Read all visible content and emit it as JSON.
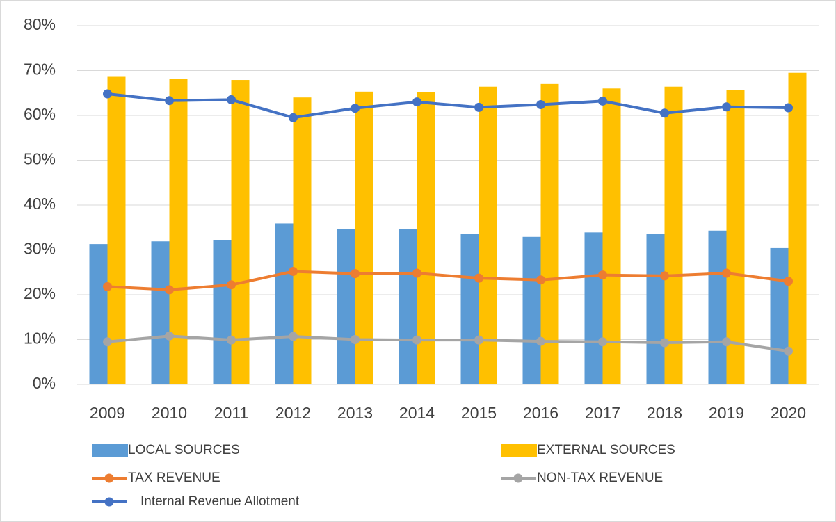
{
  "chart_data": {
    "type": "bar",
    "categories": [
      "2009",
      "2010",
      "2011",
      "2012",
      "2013",
      "2014",
      "2015",
      "2016",
      "2017",
      "2018",
      "2019",
      "2020"
    ],
    "series": [
      {
        "name": "LOCAL SOURCES",
        "type": "bar",
        "color": "#5b9bd5",
        "values": [
          31.3,
          31.9,
          32.1,
          35.9,
          34.6,
          34.7,
          33.5,
          32.9,
          33.9,
          33.5,
          34.3,
          30.4
        ]
      },
      {
        "name": "EXTERNAL SOURCES",
        "type": "bar",
        "color": "#ffc000",
        "values": [
          68.6,
          68.1,
          67.9,
          64.0,
          65.3,
          65.2,
          66.4,
          67.0,
          66.0,
          66.4,
          65.6,
          69.5
        ]
      },
      {
        "name": "TAX REVENUE",
        "type": "line",
        "color": "#ed7d31",
        "values": [
          21.8,
          21.1,
          22.2,
          25.2,
          24.7,
          24.8,
          23.7,
          23.3,
          24.4,
          24.2,
          24.8,
          23.0
        ]
      },
      {
        "name": "NON-TAX REVENUE",
        "type": "line",
        "color": "#a5a5a5",
        "values": [
          9.5,
          10.8,
          9.9,
          10.7,
          10.0,
          9.9,
          9.9,
          9.6,
          9.5,
          9.3,
          9.5,
          7.4
        ]
      },
      {
        "name": "Internal Revenue Allotment",
        "type": "line",
        "color": "#4472c4",
        "values": [
          64.8,
          63.3,
          63.5,
          59.5,
          61.6,
          63.0,
          61.8,
          62.4,
          63.2,
          60.5,
          61.9,
          61.7
        ]
      }
    ],
    "ylim": [
      0,
      80
    ],
    "yticks": [
      {
        "value": 0,
        "label": "0%"
      },
      {
        "value": 10,
        "label": "10%"
      },
      {
        "value": 20,
        "label": "20%"
      },
      {
        "value": 30,
        "label": "30%"
      },
      {
        "value": 40,
        "label": "40%"
      },
      {
        "value": 50,
        "label": "50%"
      },
      {
        "value": 60,
        "label": "60%"
      },
      {
        "value": 70,
        "label": "70%"
      },
      {
        "value": 80,
        "label": "80%"
      }
    ],
    "grid": true,
    "legend": "bottom"
  }
}
